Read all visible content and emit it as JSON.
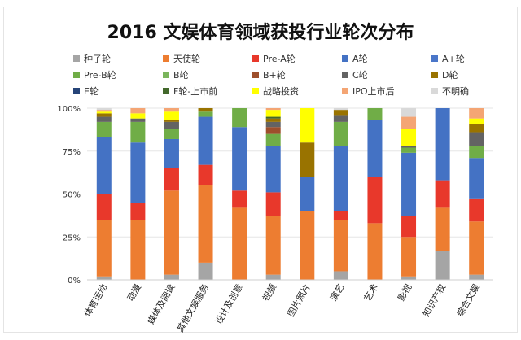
{
  "chart_data": {
    "type": "bar",
    "stacked": true,
    "title": "2016 文娱体育领域获投行业轮次分布",
    "xlabel": "",
    "ylabel": "",
    "ylim": [
      0,
      100
    ],
    "yticks": [
      "0%",
      "25%",
      "50%",
      "75%",
      "100%"
    ],
    "categories": [
      "体育运动",
      "动漫",
      "媒体及阅读",
      "其他文娱服务",
      "设计及创意",
      "视频",
      "图片照片",
      "演艺",
      "艺术",
      "影视",
      "知识产权",
      "综合文娱"
    ],
    "legend_position": "top",
    "series": [
      {
        "name": "种子轮",
        "color": "#a5a5a5",
        "values": [
          2,
          0,
          3,
          10,
          0,
          3,
          0,
          5,
          0,
          2,
          17,
          3
        ]
      },
      {
        "name": "天使轮",
        "color": "#ed7d31",
        "values": [
          33,
          35,
          49,
          45,
          42,
          34,
          40,
          30,
          33,
          23,
          25,
          31
        ]
      },
      {
        "name": "Pre-A轮",
        "color": "#e8382b",
        "values": [
          15,
          10,
          13,
          12,
          10,
          14,
          0,
          5,
          27,
          12,
          16,
          13
        ]
      },
      {
        "name": "A轮",
        "color": "#4472c4",
        "values": [
          33,
          35,
          17,
          28,
          37,
          27,
          20,
          38,
          33,
          37,
          42,
          24
        ]
      },
      {
        "name": "A+轮",
        "color": "#4a76c9",
        "values": [
          0,
          0,
          0,
          0,
          0,
          0,
          0,
          0,
          0,
          0,
          0,
          0
        ]
      },
      {
        "name": "Pre-B轮",
        "color": "#70ad47",
        "values": [
          9,
          12,
          6,
          3,
          11,
          7,
          0,
          14,
          7,
          3,
          0,
          7
        ]
      },
      {
        "name": "B轮",
        "color": "#7ab55c",
        "values": [
          0,
          0,
          0,
          0,
          0,
          0,
          0,
          0,
          0,
          0,
          0,
          0
        ]
      },
      {
        "name": "B+轮",
        "color": "#9e4f2c",
        "values": [
          0,
          0,
          0,
          0,
          0,
          4,
          0,
          0,
          0,
          0,
          0,
          0
        ]
      },
      {
        "name": "C轮",
        "color": "#636363",
        "values": [
          3,
          2,
          4,
          0,
          0,
          3,
          0,
          4,
          0,
          1,
          0,
          8
        ]
      },
      {
        "name": "D轮",
        "color": "#997300",
        "values": [
          2,
          0,
          1,
          2,
          0,
          2,
          20,
          3,
          0,
          0,
          0,
          5
        ]
      },
      {
        "name": "E轮",
        "color": "#264478",
        "values": [
          0,
          0,
          0,
          0,
          0,
          0,
          0,
          0,
          0,
          0,
          0,
          0
        ]
      },
      {
        "name": "F轮-上市前",
        "color": "#43682b",
        "values": [
          0,
          0,
          0,
          0,
          0,
          1,
          0,
          0,
          0,
          0,
          0,
          0
        ]
      },
      {
        "name": "战略投资",
        "color": "#ffff00",
        "values": [
          1,
          3,
          5,
          0,
          0,
          4,
          20,
          0,
          0,
          10,
          0,
          3
        ]
      },
      {
        "name": "IPO上市后",
        "color": "#f4a574",
        "values": [
          1,
          3,
          2,
          0,
          0,
          1,
          0,
          0,
          0,
          7,
          0,
          6
        ]
      },
      {
        "name": "不明确",
        "color": "#d9d9d9",
        "values": [
          1,
          0,
          0,
          0,
          0,
          0,
          0,
          1,
          0,
          5,
          0,
          0
        ]
      }
    ]
  }
}
